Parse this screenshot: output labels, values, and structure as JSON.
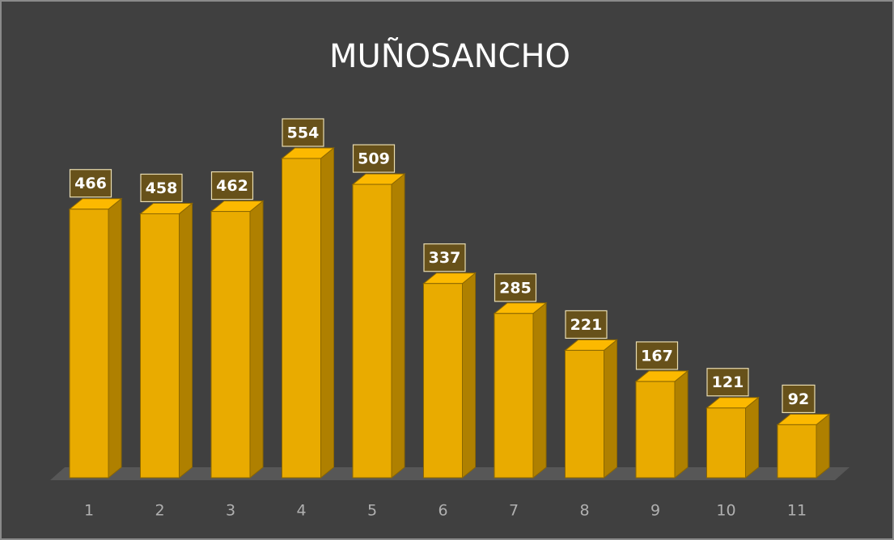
{
  "chart_data": {
    "type": "bar3d",
    "title": "MUÑOSANCHO",
    "categories": [
      "1",
      "2",
      "3",
      "4",
      "5",
      "6",
      "7",
      "8",
      "9",
      "10",
      "11"
    ],
    "values": [
      466,
      458,
      462,
      554,
      509,
      337,
      285,
      221,
      167,
      121,
      92
    ],
    "color": "#e9ab00"
  }
}
